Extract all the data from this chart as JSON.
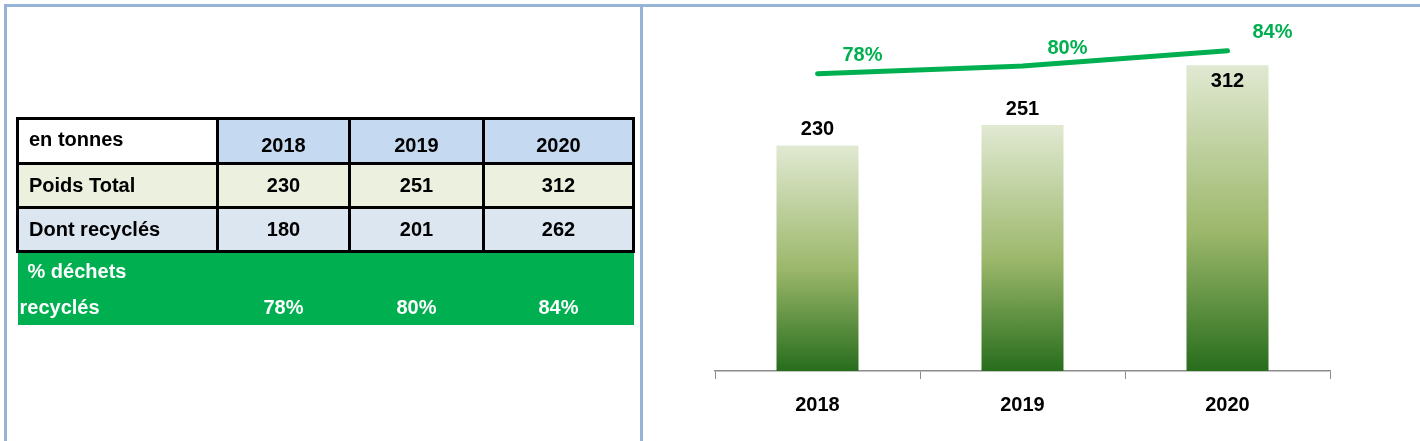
{
  "chart_data": [
    {
      "type": "other",
      "categories": [
        "2018",
        "2019",
        "2020"
      ],
      "annotations": [
        "en tonnes"
      ],
      "data_labels": true,
      "series": [
        {
          "name": "Poids Total",
          "color": "#ebf1de",
          "values": [
            230,
            251,
            312
          ]
        },
        {
          "name": "Dont recyclés",
          "color": "#dce6f1",
          "values": [
            180,
            201,
            262
          ]
        },
        {
          "name": "% déchets recyclés",
          "color": "#00b050",
          "values": [
            78,
            80,
            84
          ],
          "value_labels": [
            "78%",
            "80%",
            "84%"
          ]
        }
      ]
    },
    {
      "type": "bar",
      "categories": [
        "2018",
        "2019",
        "2020"
      ],
      "data_labels": true,
      "tick_labels": "x",
      "marker": "none",
      "series": [
        {
          "type": "bar",
          "color": "#9bb76a",
          "values": [
            230,
            251,
            312
          ]
        },
        {
          "type": "line",
          "axis": "y2",
          "color": "#00b050",
          "values": [
            78,
            80,
            84
          ],
          "value_labels": [
            "78%",
            "80%",
            "84%"
          ]
        }
      ]
    }
  ]
}
